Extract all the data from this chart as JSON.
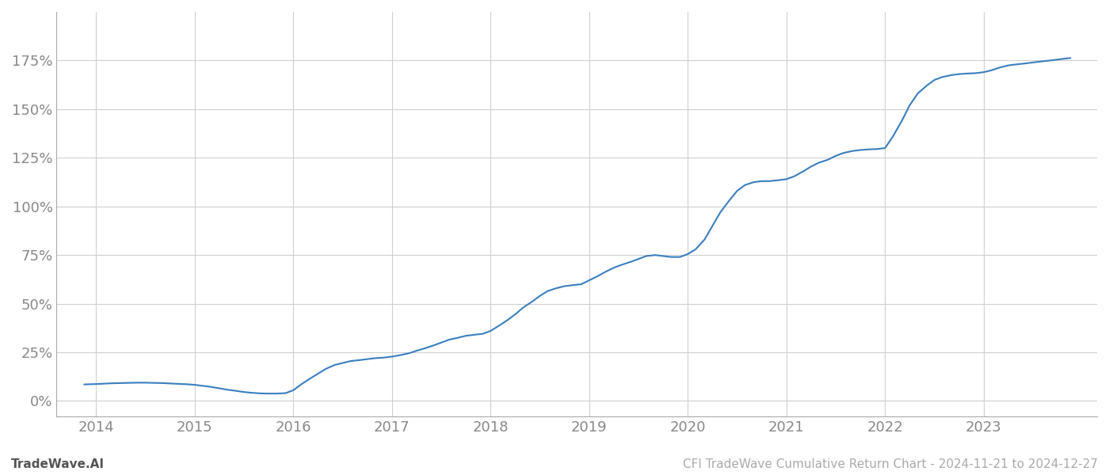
{
  "title": "CFI TradeWave Cumulative Return Chart - 2024-11-21 to 2024-12-27",
  "watermark": "TradeWave.AI",
  "line_color": "#3a7ebf",
  "line_width": 1.5,
  "background_color": "#ffffff",
  "grid_color": "#d0d0d0",
  "x_years": [
    2014,
    2015,
    2016,
    2017,
    2018,
    2019,
    2020,
    2021,
    2022,
    2023
  ],
  "x_data": [
    2013.88,
    2014.0,
    2014.08,
    2014.17,
    2014.25,
    2014.33,
    2014.42,
    2014.5,
    2014.58,
    2014.67,
    2014.75,
    2014.83,
    2014.92,
    2015.0,
    2015.08,
    2015.17,
    2015.25,
    2015.33,
    2015.42,
    2015.5,
    2015.58,
    2015.67,
    2015.75,
    2015.83,
    2015.92,
    2016.0,
    2016.08,
    2016.17,
    2016.25,
    2016.33,
    2016.42,
    2016.5,
    2016.58,
    2016.67,
    2016.75,
    2016.83,
    2016.92,
    2017.0,
    2017.08,
    2017.17,
    2017.25,
    2017.33,
    2017.42,
    2017.5,
    2017.58,
    2017.67,
    2017.75,
    2017.83,
    2017.92,
    2018.0,
    2018.08,
    2018.17,
    2018.25,
    2018.33,
    2018.42,
    2018.5,
    2018.58,
    2018.67,
    2018.75,
    2018.83,
    2018.92,
    2019.0,
    2019.08,
    2019.17,
    2019.25,
    2019.33,
    2019.42,
    2019.5,
    2019.58,
    2019.67,
    2019.75,
    2019.83,
    2019.92,
    2020.0,
    2020.08,
    2020.17,
    2020.25,
    2020.33,
    2020.42,
    2020.5,
    2020.58,
    2020.67,
    2020.75,
    2020.83,
    2020.92,
    2021.0,
    2021.08,
    2021.17,
    2021.25,
    2021.33,
    2021.42,
    2021.5,
    2021.58,
    2021.67,
    2021.75,
    2021.83,
    2021.92,
    2022.0,
    2022.08,
    2022.17,
    2022.25,
    2022.33,
    2022.42,
    2022.5,
    2022.58,
    2022.67,
    2022.75,
    2022.83,
    2022.92,
    2023.0,
    2023.08,
    2023.17,
    2023.25,
    2023.33,
    2023.42,
    2023.5,
    2023.58,
    2023.67,
    2023.75,
    2023.83,
    2023.88
  ],
  "y_data": [
    8.5,
    8.7,
    8.9,
    9.1,
    9.2,
    9.3,
    9.4,
    9.4,
    9.3,
    9.2,
    9.0,
    8.8,
    8.6,
    8.3,
    7.8,
    7.2,
    6.5,
    5.8,
    5.2,
    4.6,
    4.2,
    3.9,
    3.8,
    3.8,
    4.0,
    5.5,
    8.5,
    11.5,
    14.0,
    16.5,
    18.5,
    19.5,
    20.5,
    21.0,
    21.5,
    22.0,
    22.3,
    22.8,
    23.5,
    24.5,
    25.8,
    27.0,
    28.5,
    30.0,
    31.5,
    32.5,
    33.5,
    34.0,
    34.5,
    36.0,
    38.5,
    41.5,
    44.5,
    48.0,
    51.0,
    54.0,
    56.5,
    58.0,
    59.0,
    59.5,
    60.0,
    62.0,
    64.0,
    66.5,
    68.5,
    70.0,
    71.5,
    73.0,
    74.5,
    75.0,
    74.5,
    74.0,
    74.0,
    75.5,
    78.0,
    83.0,
    90.0,
    97.0,
    103.0,
    108.0,
    111.0,
    112.5,
    113.0,
    113.0,
    113.5,
    114.0,
    115.5,
    118.0,
    120.5,
    122.5,
    124.0,
    126.0,
    127.5,
    128.5,
    129.0,
    129.3,
    129.5,
    130.0,
    136.0,
    144.0,
    152.0,
    158.0,
    162.0,
    165.0,
    166.5,
    167.5,
    168.0,
    168.3,
    168.5,
    169.0,
    170.0,
    171.5,
    172.5,
    173.0,
    173.5,
    174.0,
    174.5,
    175.0,
    175.5,
    176.0,
    176.3
  ],
  "yticks": [
    0,
    25,
    50,
    75,
    100,
    125,
    150,
    175
  ],
  "ylim": [
    -8,
    200
  ],
  "xlim": [
    2013.6,
    2024.15
  ],
  "tick_color": "#888888",
  "tick_fontsize": 13,
  "footer_fontsize": 11,
  "footer_color": "#aaaaaa",
  "spine_color": "#aaaaaa"
}
